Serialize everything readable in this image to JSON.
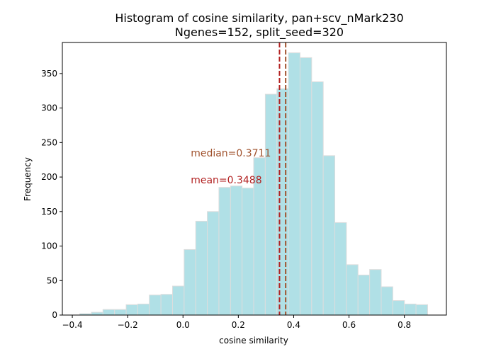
{
  "chart_data": {
    "type": "bar",
    "title": "Histogram of cosine similarity, pan+scv_nMark230",
    "subtitle": "Ngenes=152, split_seed=320",
    "xlabel": "cosine similarity",
    "ylabel": "Frequency",
    "xlim": [
      -0.436,
      0.952
    ],
    "ylim": [
      0,
      395
    ],
    "xticks": [
      -0.4,
      -0.2,
      0.0,
      0.2,
      0.4,
      0.6,
      0.8
    ],
    "xtick_labels": [
      "−0.4",
      "−0.2",
      "0.0",
      "0.2",
      "0.4",
      "0.6",
      "0.8"
    ],
    "yticks": [
      0,
      50,
      100,
      150,
      200,
      250,
      300,
      350
    ],
    "ytick_labels": [
      "0",
      "50",
      "100",
      "150",
      "200",
      "250",
      "300",
      "350"
    ],
    "bin_start": -0.373,
    "bin_width": 0.0419,
    "values": [
      2,
      4,
      8,
      8,
      15,
      16,
      29,
      30,
      42,
      95,
      136,
      150,
      185,
      187,
      184,
      228,
      320,
      328,
      380,
      373,
      338,
      231,
      134,
      73,
      58,
      66,
      41,
      21,
      16,
      15
    ],
    "bar_color": "#b0e0e6",
    "bar_edge_color": "#dddddd",
    "grid": false,
    "vlines": [
      {
        "label": "median=0.3711",
        "x": 0.3711,
        "color": "#a0522d",
        "text_x": 0.028,
        "text_y": 230
      },
      {
        "label": "mean=0.3488",
        "x": 0.3488,
        "color": "#b22222",
        "text_x": 0.028,
        "text_y": 191
      }
    ]
  }
}
